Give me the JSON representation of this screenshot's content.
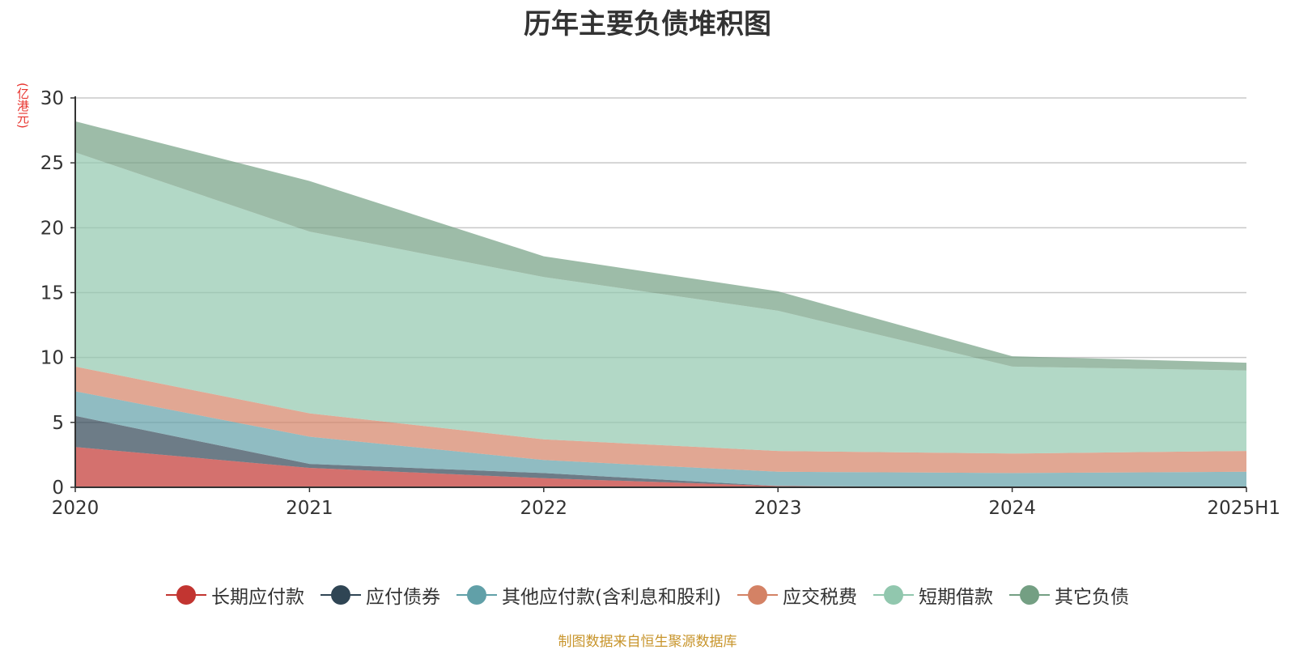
{
  "chart_data": {
    "type": "area",
    "stacked": true,
    "title": "历年主要负债堆积图",
    "unit_label": "(亿港元)",
    "categories": [
      "2020",
      "2021",
      "2022",
      "2023",
      "2024",
      "2025H1"
    ],
    "ylim": [
      0,
      30
    ],
    "yticks": [
      0,
      5,
      10,
      15,
      20,
      25,
      30
    ],
    "grid": true,
    "legend_position": "bottom",
    "series": [
      {
        "name": "长期应付款",
        "color": "#c23531",
        "values": [
          3.1,
          1.5,
          0.7,
          0.1,
          0.0,
          0.0
        ]
      },
      {
        "name": "应付债券",
        "color": "#2f4554",
        "values": [
          2.4,
          0.3,
          0.4,
          0.0,
          0.0,
          0.0
        ]
      },
      {
        "name": "其他应付款(含利息和股利)",
        "color": "#61a0a8",
        "values": [
          1.9,
          2.1,
          1.0,
          1.1,
          1.1,
          1.2
        ]
      },
      {
        "name": "应交税费",
        "color": "#d48265",
        "values": [
          1.9,
          1.8,
          1.6,
          1.6,
          1.5,
          1.6
        ]
      },
      {
        "name": "短期借款",
        "color": "#91c7ae",
        "values": [
          16.5,
          14.0,
          12.5,
          10.8,
          6.7,
          6.2
        ]
      },
      {
        "name": "其它负债",
        "color": "#749f83",
        "values": [
          2.4,
          3.9,
          1.6,
          1.5,
          0.8,
          0.6
        ]
      }
    ]
  },
  "source_note": "制图数据来自恒生聚源数据库"
}
